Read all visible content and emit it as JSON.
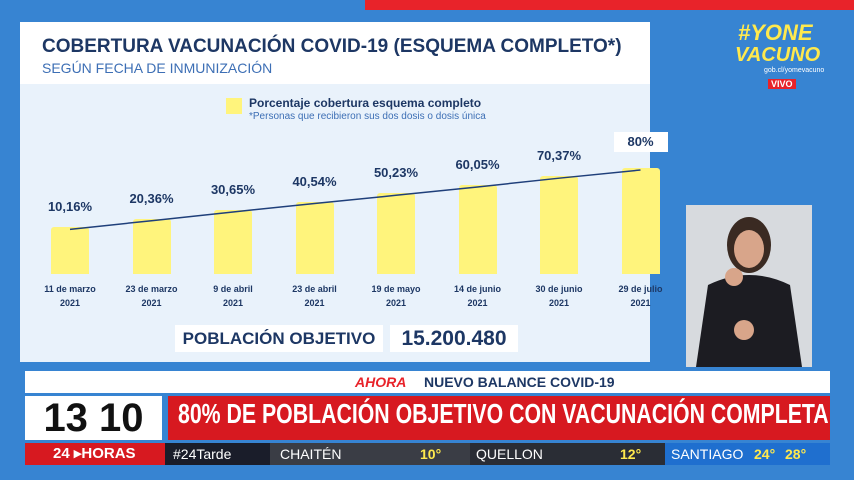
{
  "header": {
    "title": "COBERTURA VACUNACIÓN COVID-19 (ESQUEMA COMPLETO*)",
    "subtitle": "SEGÚN FECHA DE INMUNIZACIÓN"
  },
  "chart_data": {
    "type": "bar",
    "categories": [
      "11 de marzo\n2021",
      "23 de marzo\n2021",
      "9 de abril\n2021",
      "23 de abril\n2021",
      "19 de mayo\n2021",
      "14 de junio\n2021",
      "30 de junio\n2021",
      "29 de julio\n2021"
    ],
    "series": [
      {
        "name": "Porcentaje cobertura esquema completo",
        "color": "#fff47c",
        "values": [
          10.16,
          20.36,
          30.65,
          40.54,
          50.23,
          60.05,
          70.37,
          80
        ],
        "value_labels": [
          "10,16%",
          "20,36%",
          "30,65%",
          "40,54%",
          "50,23%",
          "60,05%",
          "70,37%",
          "80%"
        ]
      }
    ],
    "note": "*Personas que recibieron sus dos dosis o dosis única",
    "trend_color": "#1f3f7a"
  },
  "population": {
    "label": "POBLACIÓN OBJETIVO",
    "value": "15.200.480"
  },
  "logo": {
    "hashtag": "#YONE",
    "word": "VACUNO",
    "url": "gob.cl/yomevacuno",
    "live": "VIVO"
  },
  "ticker": {
    "kicker": "AHORA",
    "topic": "NUEVO BALANCE COVID-19",
    "time": "13 10",
    "headline": "80% DE POBLACIÓN OBJETIVO CON VACUNACIÓN COMPLETA",
    "brand_num": "24",
    "brand_word": "HORAS",
    "show": "#24Tarde",
    "weather": [
      {
        "city": "CHAITÉN",
        "temp": "10°"
      },
      {
        "city": "QUELLON",
        "temp": "12°"
      },
      {
        "city": "SANTIAGO",
        "temp": "24°",
        "temp2": "28°"
      }
    ]
  }
}
